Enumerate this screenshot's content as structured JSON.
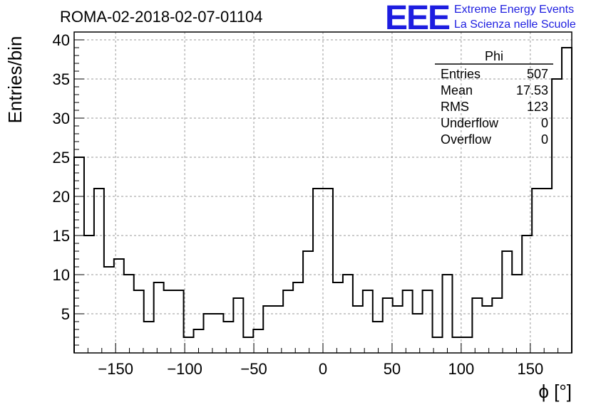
{
  "chart_data": {
    "type": "histogram",
    "title": "ROMA-02-2018-02-07-01104",
    "xlabel": "ϕ [°]",
    "ylabel": "Entries/bin",
    "xlim": [
      -180,
      180
    ],
    "ylim": [
      0,
      41
    ],
    "grid": true,
    "bin_width": 7.2,
    "x_ticks": [
      -150,
      -100,
      -50,
      0,
      50,
      100,
      150
    ],
    "y_ticks": [
      5,
      10,
      15,
      20,
      25,
      30,
      35,
      40
    ],
    "values": [
      25,
      15,
      21,
      11,
      12,
      10,
      8,
      4,
      9,
      8,
      8,
      2,
      3,
      5,
      5,
      4,
      7,
      2,
      3,
      6,
      6,
      8,
      9,
      13,
      21,
      21,
      9,
      10,
      6,
      8,
      4,
      7,
      6,
      8,
      5,
      8,
      2,
      10,
      2,
      2,
      7,
      6,
      7,
      13,
      10,
      15,
      21,
      21,
      35,
      39
    ],
    "stats": {
      "name": "Phi",
      "rows": [
        {
          "label": "Entries",
          "value": "507"
        },
        {
          "label": "Mean",
          "value": "17.53"
        },
        {
          "label": "RMS",
          "value": "123"
        },
        {
          "label": "Underflow",
          "value": "0"
        },
        {
          "label": "Overflow",
          "value": "0"
        }
      ]
    }
  },
  "logo": {
    "mark": "EEE",
    "line1": "Extreme Energy Events",
    "line2": "La Scienza nelle Scuole",
    "color": "#1d1de0"
  }
}
